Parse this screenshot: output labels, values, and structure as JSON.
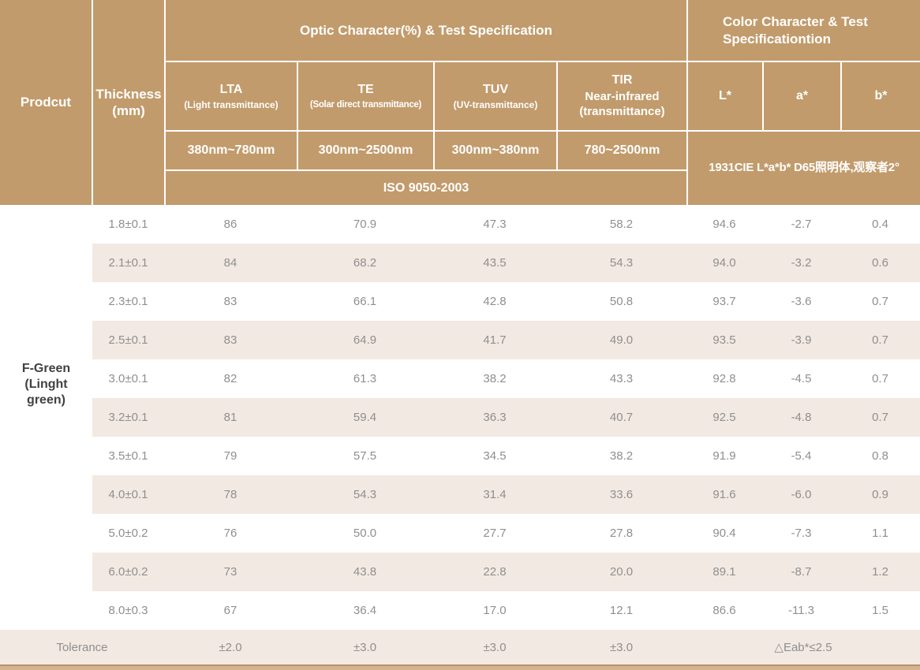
{
  "colors": {
    "header_tan": "#c29b6c",
    "stripe_beige": "#f2e9e2",
    "data_text_gray": "#8f8f8f",
    "product_text_dark": "#414141",
    "bottom_bar": "#d3b48c"
  },
  "header": {
    "product_label": "Prodcut",
    "thickness_label": "Thickness\n(mm)",
    "optic_title": "Optic Character(%) & Test Specification",
    "color_title": "Color Character & Test\nSpecificationtion",
    "optic_columns": [
      {
        "abbr": "LTA",
        "desc": "(Light transmittance)",
        "range": "380nm~780nm"
      },
      {
        "abbr": "TE",
        "desc": "(Solar direct transmittance)",
        "range": "300nm~2500nm"
      },
      {
        "abbr": "TUV",
        "desc": "(UV-transmittance)",
        "range": "300nm~380nm"
      },
      {
        "abbr": "TIR",
        "desc": "Near-infrared\n(transmittance)",
        "range": "780~2500nm"
      }
    ],
    "color_columns": [
      "L*",
      "a*",
      "b*"
    ],
    "optic_standard": "ISO 9050-2003",
    "color_standard": "1931CIE L*a*b*  D65照明体,观察者2°"
  },
  "product": {
    "name": "F-Green\n(Linght\ngreen)"
  },
  "rows": [
    {
      "thickness": "1.8±0.1",
      "lta": "86",
      "te": "70.9",
      "tuv": "47.3",
      "tir": "58.2",
      "l": "94.6",
      "a": "-2.7",
      "b": "0.4"
    },
    {
      "thickness": "2.1±0.1",
      "lta": "84",
      "te": "68.2",
      "tuv": "43.5",
      "tir": "54.3",
      "l": "94.0",
      "a": "-3.2",
      "b": "0.6"
    },
    {
      "thickness": "2.3±0.1",
      "lta": "83",
      "te": "66.1",
      "tuv": "42.8",
      "tir": "50.8",
      "l": "93.7",
      "a": "-3.6",
      "b": "0.7"
    },
    {
      "thickness": "2.5±0.1",
      "lta": "83",
      "te": "64.9",
      "tuv": "41.7",
      "tir": "49.0",
      "l": "93.5",
      "a": "-3.9",
      "b": "0.7"
    },
    {
      "thickness": "3.0±0.1",
      "lta": "82",
      "te": "61.3",
      "tuv": "38.2",
      "tir": "43.3",
      "l": "92.8",
      "a": "-4.5",
      "b": "0.7"
    },
    {
      "thickness": "3.2±0.1",
      "lta": "81",
      "te": "59.4",
      "tuv": "36.3",
      "tir": "40.7",
      "l": "92.5",
      "a": "-4.8",
      "b": "0.7"
    },
    {
      "thickness": "3.5±0.1",
      "lta": "79",
      "te": "57.5",
      "tuv": "34.5",
      "tir": "38.2",
      "l": "91.9",
      "a": "-5.4",
      "b": "0.8"
    },
    {
      "thickness": "4.0±0.1",
      "lta": "78",
      "te": "54.3",
      "tuv": "31.4",
      "tir": "33.6",
      "l": "91.6",
      "a": "-6.0",
      "b": "0.9"
    },
    {
      "thickness": "5.0±0.2",
      "lta": "76",
      "te": "50.0",
      "tuv": "27.7",
      "tir": "27.8",
      "l": "90.4",
      "a": "-7.3",
      "b": "1.1"
    },
    {
      "thickness": "6.0±0.2",
      "lta": "73",
      "te": "43.8",
      "tuv": "22.8",
      "tir": "20.0",
      "l": "89.1",
      "a": "-8.7",
      "b": "1.2"
    },
    {
      "thickness": "8.0±0.3",
      "lta": "67",
      "te": "36.4",
      "tuv": "17.0",
      "tir": "12.1",
      "l": "86.6",
      "a": "-11.3",
      "b": "1.5"
    }
  ],
  "tolerance": {
    "label": "Tolerance",
    "lta": "±2.0",
    "te": "±3.0",
    "tuv": "±3.0",
    "tir": "±3.0",
    "color": "△Eab*≤2.5"
  }
}
